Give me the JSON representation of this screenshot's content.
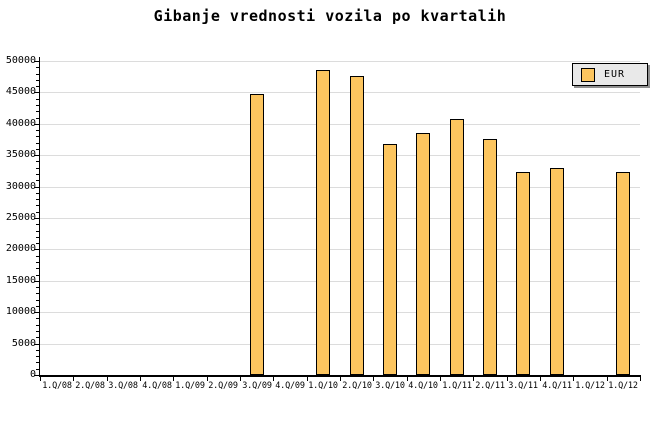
{
  "title": "Gibanje vrednosti vozila po kvartalih",
  "legend": {
    "label": "EUR",
    "position": "top-right"
  },
  "colors": {
    "background": "#ffffff",
    "bar_fill": "#fcc55f",
    "bar_border": "#000000",
    "grid": "#dcdcdc",
    "axis": "#000000",
    "legend_bg": "#e9e9e9",
    "legend_shadow": "#8f8f8f",
    "text": "#000000"
  },
  "chart_data": {
    "type": "bar",
    "title": "Gibanje vrednosti vozila po kvartalih",
    "xlabel": "",
    "ylabel": "",
    "categories": [
      "1.Q/08",
      "2.Q/08",
      "3.Q/08",
      "4.Q/08",
      "1.Q/09",
      "2.Q/09",
      "3.Q/09",
      "4.Q/09",
      "1.Q/10",
      "2.Q/10",
      "3.Q/10",
      "4.Q/10",
      "1.Q/11",
      "2.Q/11",
      "3.Q/11",
      "4.Q/11",
      "1.Q/12",
      "1.Q/12"
    ],
    "series": [
      {
        "name": "EUR",
        "values": [
          0,
          0,
          0,
          0,
          0,
          0,
          44800,
          0,
          48500,
          47600,
          36800,
          38500,
          40800,
          37600,
          32400,
          33000,
          0,
          32400
        ]
      }
    ],
    "ylim": [
      0,
      50000
    ],
    "ytick_step": 5000,
    "y_minor_tick_step": 1000,
    "y_tick_labels": [
      "0",
      "5000",
      "10000",
      "15000",
      "20000",
      "25000",
      "30000",
      "35000",
      "40000",
      "45000",
      "50000"
    ],
    "grid": true,
    "legend_position": "top-right"
  }
}
